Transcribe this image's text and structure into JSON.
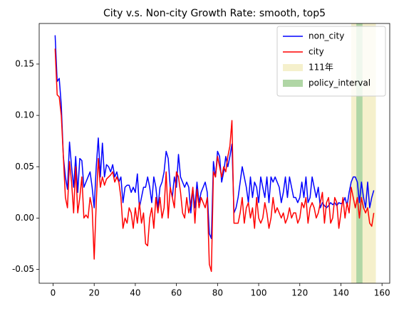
{
  "chart_data": {
    "type": "line",
    "title": "City v.s. Non-city Growth Rate: smooth, top5",
    "x": [
      1,
      2,
      3,
      4,
      5,
      6,
      7,
      8,
      9,
      10,
      11,
      12,
      13,
      14,
      15,
      16,
      17,
      18,
      19,
      20,
      21,
      22,
      23,
      24,
      25,
      26,
      27,
      28,
      29,
      30,
      31,
      32,
      33,
      34,
      35,
      36,
      37,
      38,
      39,
      40,
      41,
      42,
      43,
      44,
      45,
      46,
      47,
      48,
      49,
      50,
      51,
      52,
      53,
      54,
      55,
      56,
      57,
      58,
      59,
      60,
      61,
      62,
      63,
      64,
      65,
      66,
      67,
      68,
      69,
      70,
      71,
      72,
      73,
      74,
      75,
      76,
      77,
      78,
      79,
      80,
      81,
      82,
      83,
      84,
      85,
      86,
      87,
      88,
      89,
      90,
      91,
      92,
      93,
      94,
      95,
      96,
      97,
      98,
      99,
      100,
      101,
      102,
      103,
      104,
      105,
      106,
      107,
      108,
      109,
      110,
      111,
      112,
      113,
      114,
      115,
      116,
      117,
      118,
      119,
      120,
      121,
      122,
      123,
      124,
      125,
      126,
      127,
      128,
      129,
      130,
      131,
      132,
      133,
      134,
      135,
      136,
      137,
      138,
      139,
      140,
      141,
      142,
      143,
      144,
      145,
      146,
      147,
      148,
      149,
      150,
      151,
      152,
      153,
      154,
      155,
      156
    ],
    "series": [
      {
        "name": "non_city",
        "color": "#0000ff",
        "values": [
          0.178,
          0.133,
          0.136,
          0.11,
          0.06,
          0.04,
          0.028,
          0.074,
          0.05,
          0.03,
          0.06,
          0.025,
          0.058,
          0.056,
          0.03,
          0.035,
          0.04,
          0.045,
          0.03,
          0.01,
          0.05,
          0.078,
          0.04,
          0.073,
          0.04,
          0.052,
          0.05,
          0.045,
          0.052,
          0.04,
          0.045,
          0.035,
          0.04,
          0.015,
          0.03,
          0.032,
          0.032,
          0.025,
          0.03,
          0.025,
          0.043,
          0.01,
          0.02,
          0.03,
          0.03,
          0.04,
          0.03,
          0.015,
          0.04,
          0.03,
          0.01,
          0.03,
          0.035,
          0.045,
          0.065,
          0.058,
          0.03,
          0.02,
          0.04,
          0.03,
          0.062,
          0.04,
          0.035,
          0.03,
          0.035,
          0.03,
          0.005,
          0.028,
          0.01,
          0.035,
          0.015,
          0.025,
          0.03,
          0.035,
          0.025,
          -0.015,
          -0.02,
          0.055,
          0.04,
          0.065,
          0.06,
          0.035,
          0.045,
          0.06,
          0.05,
          0.06,
          0.072,
          0.005,
          0.01,
          0.02,
          0.035,
          0.05,
          0.04,
          0.03,
          0.015,
          0.04,
          0.02,
          0.035,
          0.03,
          0.015,
          0.04,
          0.03,
          0.02,
          0.04,
          0.015,
          0.04,
          0.035,
          0.04,
          0.035,
          0.03,
          0.015,
          0.025,
          0.04,
          0.02,
          0.04,
          0.03,
          0.02,
          0.02,
          0.015,
          0.02,
          0.035,
          0.02,
          0.04,
          0.015,
          0.02,
          0.04,
          0.03,
          0.02,
          0.03,
          0.01,
          0.015,
          0.012,
          0.01,
          0.012,
          0.015,
          0.013,
          0.015,
          0.012,
          0.015,
          0.014,
          0.015,
          0.02,
          0.012,
          0.025,
          0.035,
          0.04,
          0.04,
          0.035,
          0.015,
          0.035,
          0.02,
          0.01,
          0.035,
          0.01,
          0.02,
          0.027
        ]
      },
      {
        "name": "city",
        "color": "#ff0000",
        "values": [
          0.165,
          0.12,
          0.118,
          0.1,
          0.06,
          0.02,
          0.01,
          0.055,
          0.035,
          0.005,
          0.05,
          0.005,
          0.02,
          0.04,
          0.0,
          0.003,
          0.0,
          0.02,
          0.01,
          -0.04,
          0.015,
          0.058,
          0.03,
          0.04,
          0.032,
          0.038,
          0.04,
          0.042,
          0.045,
          0.035,
          0.04,
          0.035,
          0.02,
          -0.01,
          0.0,
          -0.005,
          0.01,
          0.005,
          -0.01,
          0.01,
          -0.005,
          0.015,
          -0.005,
          0.005,
          -0.025,
          -0.027,
          0.0,
          0.01,
          -0.01,
          0.02,
          0.005,
          0.02,
          0.0,
          0.01,
          0.045,
          0.0,
          0.03,
          0.02,
          0.01,
          0.045,
          0.04,
          0.025,
          0.005,
          0.0,
          0.02,
          0.005,
          0.015,
          0.03,
          -0.005,
          0.028,
          0.01,
          0.02,
          0.015,
          0.01,
          0.02,
          -0.045,
          -0.052,
          0.045,
          0.04,
          0.06,
          0.05,
          0.04,
          0.05,
          0.045,
          0.06,
          0.07,
          0.095,
          -0.005,
          -0.005,
          -0.005,
          0.005,
          0.02,
          -0.005,
          0.01,
          0.015,
          0.0,
          0.01,
          -0.01,
          0.02,
          0.0,
          -0.005,
          0.0,
          0.015,
          0.005,
          -0.01,
          0.0,
          0.02,
          0.005,
          0.01,
          0.005,
          0.0,
          0.005,
          -0.005,
          0.0,
          0.01,
          0.0,
          0.005,
          0.005,
          -0.005,
          0.0,
          0.015,
          0.01,
          0.02,
          -0.005,
          0.01,
          0.015,
          0.01,
          0.0,
          0.005,
          0.015,
          0.025,
          -0.005,
          0.015,
          0.02,
          -0.005,
          0.0,
          0.02,
          0.015,
          -0.01,
          0.005,
          0.02,
          0.0,
          0.015,
          0.005,
          0.03,
          0.02,
          0.01,
          0.02,
          0.0,
          0.02,
          0.01,
          0.005,
          0.01,
          -0.005,
          -0.008,
          0.005
        ]
      }
    ],
    "spans": [
      {
        "name": "111年",
        "color": "#f5f0cc",
        "x": [
          145,
          157
        ]
      },
      {
        "name": "policy_interval",
        "color": "#b0d6a5",
        "x": [
          147.5,
          150.5
        ]
      }
    ],
    "xlim": [
      -6.75,
      163.75
    ],
    "xticks": [
      0,
      20,
      40,
      60,
      80,
      100,
      120,
      140,
      160
    ],
    "ylim": [
      -0.0635,
      0.1895
    ],
    "yticks": [
      -0.05,
      {
        "value": 0,
        "label": "0.00"
      },
      0.05,
      {
        "value": 0.1,
        "label": "0.10"
      },
      0.15
    ],
    "legend": "upper right"
  }
}
